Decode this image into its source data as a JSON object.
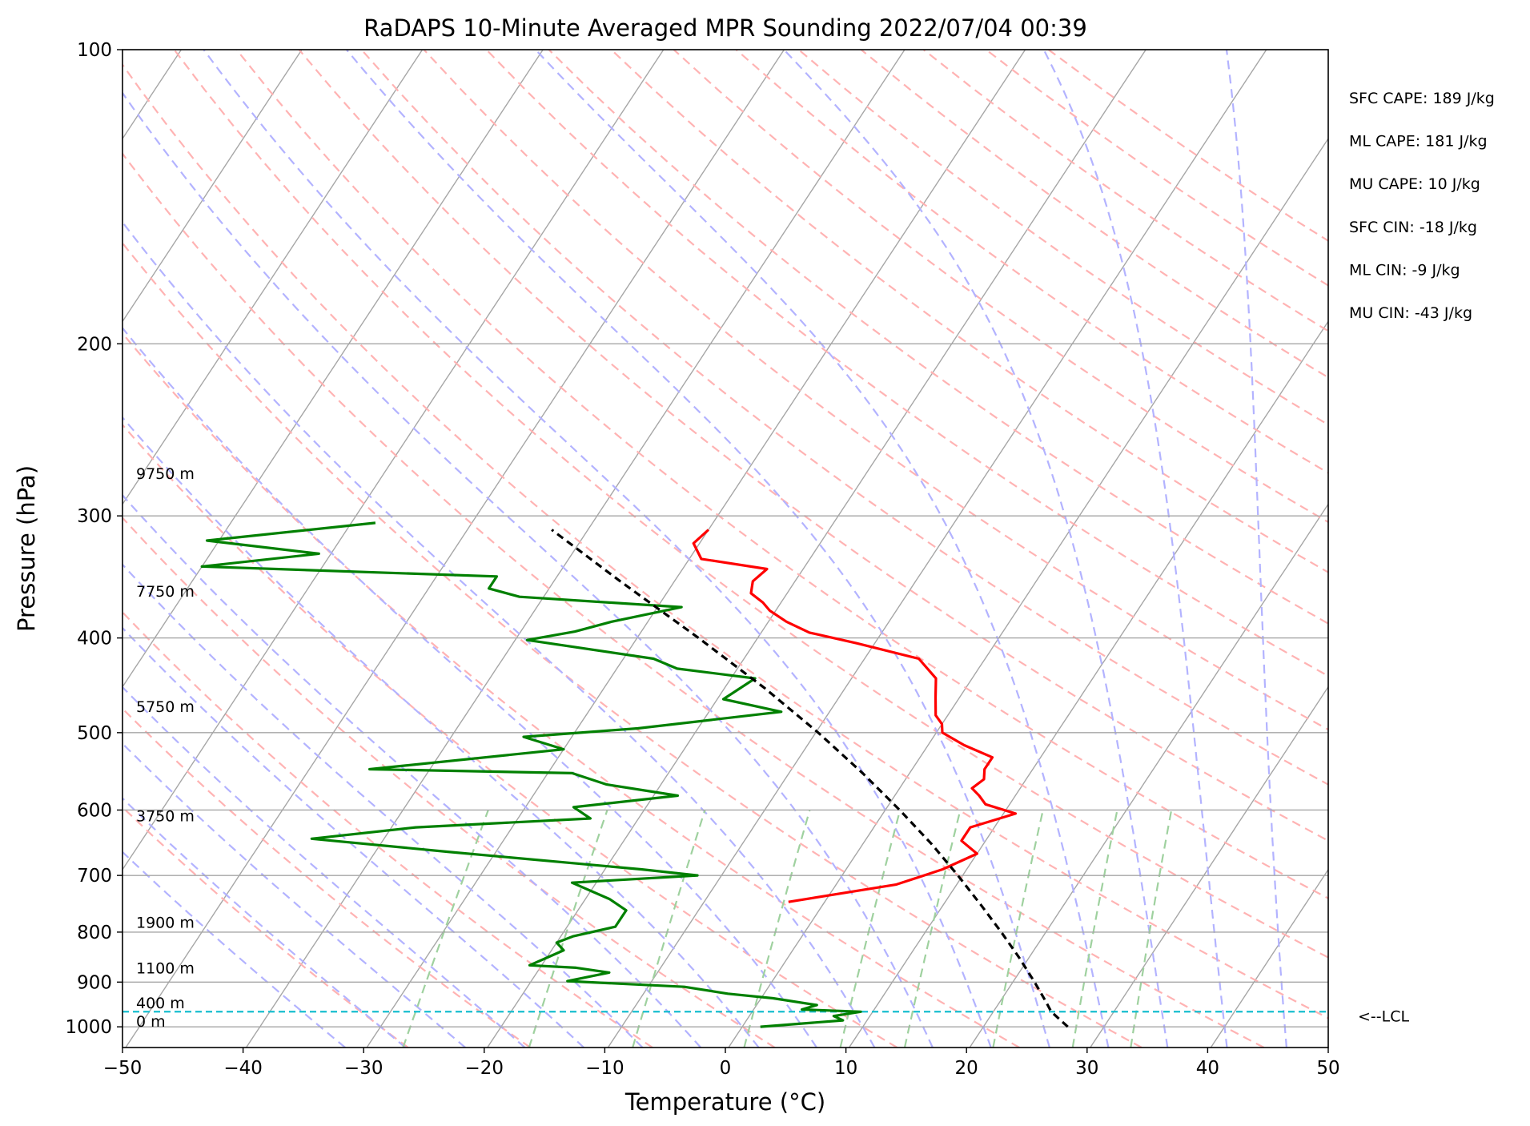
{
  "chart_data": {
    "type": "skew-t",
    "title": "RaDAPS 10-Minute Averaged MPR Sounding 2022/07/04 00:39",
    "xlabel": "Temperature (°C)",
    "ylabel": "Pressure (hPa)",
    "xlim": [
      -50,
      50
    ],
    "ylim": [
      1050,
      100
    ],
    "y_scale": "log",
    "x_ticks": [
      -50,
      -40,
      -30,
      -20,
      -10,
      0,
      10,
      20,
      30,
      40,
      50
    ],
    "x_tick_labels": [
      "−50",
      "−40",
      "−30",
      "−20",
      "−10",
      "0",
      "10",
      "20",
      "30",
      "40",
      "50"
    ],
    "y_ticks": [
      100,
      200,
      300,
      400,
      500,
      600,
      700,
      800,
      900,
      1000
    ],
    "y_tick_labels": [
      "100",
      "200",
      "300",
      "400",
      "500",
      "600",
      "700",
      "800",
      "900",
      "1000"
    ],
    "grid": true,
    "colors": {
      "temperature": "#ff0000",
      "dewpoint": "#008000",
      "parcel": "#000000",
      "lcl": "#17becf",
      "isotherm": "#a6a6a6",
      "dry_adiabat": "#ffb3b3",
      "moist_adiabat": "#b3b3ff",
      "mixing_ratio": "#9fd19f"
    },
    "series": [
      {
        "key": "temperature",
        "pressure": [
          310,
          320,
          332,
          340,
          350,
          360,
          368,
          375,
          385,
          395,
          405,
          420,
          440,
          460,
          480,
          490,
          500,
          515,
          530,
          545,
          558,
          570,
          580,
          592,
          605,
          625,
          645,
          665,
          690,
          715,
          745
        ],
        "temperature": [
          -30.0,
          -30.5,
          -29.0,
          -23.0,
          -23.5,
          -23.0,
          -21.5,
          -20.5,
          -18.5,
          -16.0,
          -11.5,
          -5.5,
          -3.0,
          -2.0,
          -1.0,
          0.0,
          0.5,
          3.0,
          6.0,
          6.0,
          6.5,
          6.0,
          7.0,
          8.0,
          11.0,
          8.0,
          8.0,
          10.0,
          8.0,
          5.0,
          -3.0
        ]
      },
      {
        "key": "dewpoint",
        "pressure": [
          305,
          318,
          328,
          338,
          346,
          356,
          363,
          372,
          385,
          394,
          402,
          420,
          430,
          440,
          462,
          476,
          495,
          505,
          520,
          545,
          550,
          565,
          580,
          596,
          612,
          625,
          642,
          662,
          690,
          700,
          712,
          740,
          760,
          790,
          808,
          820,
          835,
          850,
          865,
          870,
          880,
          898,
          910,
          925,
          935,
          950,
          960,
          965,
          975,
          985,
          1000
        ],
        "dewpoint": [
          -58,
          -71,
          -61,
          -70,
          -45,
          -45,
          -42,
          -28,
          -33,
          -35.5,
          -39,
          -27.5,
          -25,
          -18,
          -19.5,
          -14,
          -25,
          -34,
          -30,
          -45,
          -28,
          -24.5,
          -18,
          -26,
          -24,
          -38,
          -46,
          -34,
          -17,
          -12,
          -22,
          -18,
          -16,
          -16,
          -19,
          -20,
          -19,
          -20,
          -21,
          -17,
          -14,
          -17,
          -7,
          -3,
          1,
          5,
          4,
          9,
          7,
          8,
          1.5
        ]
      },
      {
        "key": "parcel",
        "pressure": [
          1000,
          965,
          940,
          900,
          850,
          800,
          750,
          700,
          650,
          600,
          550,
          500,
          450,
          400,
          350,
          310
        ],
        "temperature": [
          27.0,
          24.8,
          23.7,
          21.8,
          19.2,
          16.3,
          13.1,
          9.6,
          5.7,
          1.2,
          -3.9,
          -9.8,
          -16.7,
          -24.9,
          -34.5,
          -43.0
        ]
      }
    ],
    "lcl_pressure": 965,
    "lcl_label": "<--LCL",
    "height_labels": [
      {
        "pressure": 275,
        "label": "9750 m"
      },
      {
        "pressure": 363,
        "label": "7750 m"
      },
      {
        "pressure": 476,
        "label": "5750 m"
      },
      {
        "pressure": 616,
        "label": "3750 m"
      },
      {
        "pressure": 792,
        "label": "1900 m"
      },
      {
        "pressure": 882,
        "label": "1100 m"
      },
      {
        "pressure": 957,
        "label": "400 m"
      },
      {
        "pressure": 1000,
        "label": "0 m"
      }
    ],
    "indices": [
      "SFC CAPE: 189 J/kg",
      "ML CAPE: 181 J/kg",
      "MU CAPE: 10 J/kg",
      "SFC CIN: -18 J/kg",
      "ML CIN: -9 J/kg",
      "MU CIN: -43 J/kg"
    ]
  }
}
